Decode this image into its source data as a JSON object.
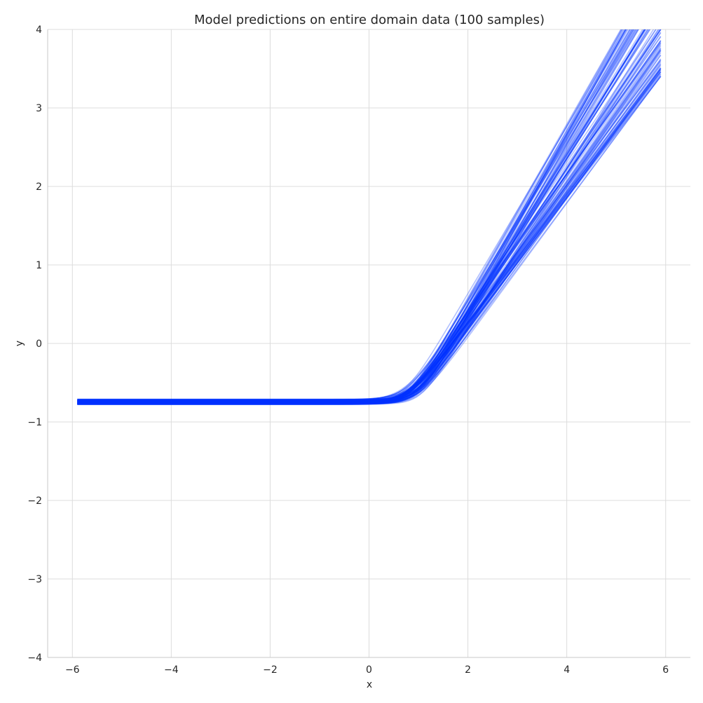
{
  "chart_data": {
    "type": "line",
    "title": "Model predictions on entire domain data (100 samples)",
    "xlabel": "x",
    "ylabel": "y",
    "xlim": [
      -6.5,
      6.5
    ],
    "ylim": [
      -4,
      4
    ],
    "xticks": [
      -6,
      -4,
      -2,
      0,
      2,
      4,
      6
    ],
    "yticks": [
      -4,
      -3,
      -2,
      -1,
      0,
      1,
      2,
      3,
      4
    ],
    "xtick_labels": [
      "−6",
      "−4",
      "−2",
      "0",
      "2",
      "4",
      "6"
    ],
    "ytick_labels": [
      "−4",
      "−3",
      "−2",
      "−1",
      "0",
      "1",
      "2",
      "3",
      "4"
    ],
    "grid": true,
    "legend": "none",
    "line_color": "#0033ff",
    "line_alpha": 0.3,
    "sample_count": 100,
    "x_range": [
      -5.9,
      5.9
    ],
    "flat_level_range": [
      -0.78,
      -0.71
    ],
    "kink_x_range": [
      0.7,
      1.05
    ],
    "y_at_x_max_range": [
      3.4,
      4.9
    ],
    "series_description": "Each sample follows a softplus-like curve: flat at about y = -0.75 for x < ~0.8, then rising roughly linearly, crossing y = 0 near x = 1.8–2.0 and reaching y ≈ 3.4–4.9 at x = 5.9."
  }
}
